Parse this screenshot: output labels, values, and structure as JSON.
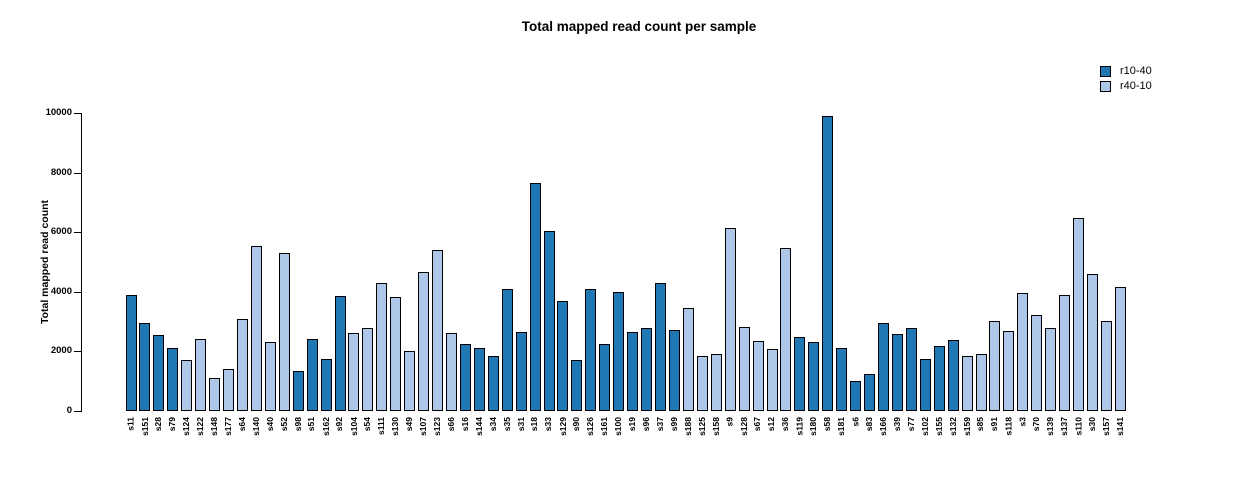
{
  "title": "Total mapped read count per sample",
  "legend": {
    "position": "top-right",
    "items": [
      {
        "label": "r10-40",
        "color": "#1f77b4"
      },
      {
        "label": "r40-10",
        "color": "#aec7e8"
      }
    ]
  },
  "chart_data": {
    "type": "bar",
    "title": "Total mapped read count per sample",
    "xlabel": "",
    "ylabel": "Total mapped read count",
    "ylim": [
      0,
      10000
    ],
    "yticks": [
      0,
      2000,
      4000,
      6000,
      8000,
      10000
    ],
    "grid": false,
    "legend_position": "top-right",
    "series_colors": {
      "r10-40": "#1f77b4",
      "r40-10": "#aec7e8"
    },
    "bar_edge_color": "#000000",
    "bars": [
      {
        "sample": "s11",
        "group": "r10-40",
        "value": 3900
      },
      {
        "sample": "s151",
        "group": "r10-40",
        "value": 2950
      },
      {
        "sample": "s28",
        "group": "r10-40",
        "value": 2550
      },
      {
        "sample": "s79",
        "group": "r10-40",
        "value": 2100
      },
      {
        "sample": "s124",
        "group": "r40-10",
        "value": 1700
      },
      {
        "sample": "s122",
        "group": "r40-10",
        "value": 2400
      },
      {
        "sample": "s148",
        "group": "r40-10",
        "value": 1100
      },
      {
        "sample": "s177",
        "group": "r40-10",
        "value": 1400
      },
      {
        "sample": "s64",
        "group": "r40-10",
        "value": 3100
      },
      {
        "sample": "s140",
        "group": "r40-10",
        "value": 5550
      },
      {
        "sample": "s40",
        "group": "r40-10",
        "value": 2330
      },
      {
        "sample": "s52",
        "group": "r40-10",
        "value": 5300
      },
      {
        "sample": "s98",
        "group": "r10-40",
        "value": 1350
      },
      {
        "sample": "s51",
        "group": "r10-40",
        "value": 2400
      },
      {
        "sample": "s162",
        "group": "r10-40",
        "value": 1750
      },
      {
        "sample": "s92",
        "group": "r10-40",
        "value": 3850
      },
      {
        "sample": "s104",
        "group": "r40-10",
        "value": 2620
      },
      {
        "sample": "s54",
        "group": "r40-10",
        "value": 2780
      },
      {
        "sample": "s111",
        "group": "r40-10",
        "value": 4280
      },
      {
        "sample": "s130",
        "group": "r40-10",
        "value": 3820
      },
      {
        "sample": "s49",
        "group": "r40-10",
        "value": 2000
      },
      {
        "sample": "s107",
        "group": "r40-10",
        "value": 4650
      },
      {
        "sample": "s123",
        "group": "r40-10",
        "value": 5400
      },
      {
        "sample": "s66",
        "group": "r40-10",
        "value": 2620
      },
      {
        "sample": "s16",
        "group": "r10-40",
        "value": 2250
      },
      {
        "sample": "s144",
        "group": "r10-40",
        "value": 2100
      },
      {
        "sample": "s34",
        "group": "r10-40",
        "value": 1850
      },
      {
        "sample": "s35",
        "group": "r10-40",
        "value": 4100
      },
      {
        "sample": "s31",
        "group": "r10-40",
        "value": 2650
      },
      {
        "sample": "s18",
        "group": "r10-40",
        "value": 7650
      },
      {
        "sample": "s33",
        "group": "r10-40",
        "value": 6030
      },
      {
        "sample": "s129",
        "group": "r10-40",
        "value": 3700
      },
      {
        "sample": "s90",
        "group": "r10-40",
        "value": 1700
      },
      {
        "sample": "s126",
        "group": "r10-40",
        "value": 4100
      },
      {
        "sample": "s161",
        "group": "r10-40",
        "value": 2250
      },
      {
        "sample": "s100",
        "group": "r10-40",
        "value": 4000
      },
      {
        "sample": "s19",
        "group": "r10-40",
        "value": 2650
      },
      {
        "sample": "s96",
        "group": "r10-40",
        "value": 2800
      },
      {
        "sample": "s37",
        "group": "r10-40",
        "value": 4280
      },
      {
        "sample": "s99",
        "group": "r10-40",
        "value": 2730
      },
      {
        "sample": "s188",
        "group": "r40-10",
        "value": 3450
      },
      {
        "sample": "s125",
        "group": "r40-10",
        "value": 1830
      },
      {
        "sample": "s158",
        "group": "r40-10",
        "value": 1900
      },
      {
        "sample": "s9",
        "group": "r40-10",
        "value": 6150
      },
      {
        "sample": "s128",
        "group": "r40-10",
        "value": 2830
      },
      {
        "sample": "s67",
        "group": "r40-10",
        "value": 2350
      },
      {
        "sample": "s12",
        "group": "r40-10",
        "value": 2080
      },
      {
        "sample": "s36",
        "group": "r40-10",
        "value": 5480
      },
      {
        "sample": "s119",
        "group": "r10-40",
        "value": 2470
      },
      {
        "sample": "s180",
        "group": "r10-40",
        "value": 2330
      },
      {
        "sample": "s58",
        "group": "r10-40",
        "value": 9900
      },
      {
        "sample": "s181",
        "group": "r10-40",
        "value": 2120
      },
      {
        "sample": "s6",
        "group": "r10-40",
        "value": 1000
      },
      {
        "sample": "s83",
        "group": "r10-40",
        "value": 1250
      },
      {
        "sample": "s166",
        "group": "r10-40",
        "value": 2960
      },
      {
        "sample": "s39",
        "group": "r10-40",
        "value": 2600
      },
      {
        "sample": "s77",
        "group": "r10-40",
        "value": 2770
      },
      {
        "sample": "s102",
        "group": "r10-40",
        "value": 1760
      },
      {
        "sample": "s155",
        "group": "r10-40",
        "value": 2170
      },
      {
        "sample": "s132",
        "group": "r10-40",
        "value": 2390
      },
      {
        "sample": "s159",
        "group": "r40-10",
        "value": 1830
      },
      {
        "sample": "s85",
        "group": "r40-10",
        "value": 1920
      },
      {
        "sample": "s91",
        "group": "r40-10",
        "value": 3030
      },
      {
        "sample": "s118",
        "group": "r40-10",
        "value": 2690
      },
      {
        "sample": "s3",
        "group": "r40-10",
        "value": 3950
      },
      {
        "sample": "s70",
        "group": "r40-10",
        "value": 3220
      },
      {
        "sample": "s139",
        "group": "r40-10",
        "value": 2790
      },
      {
        "sample": "s137",
        "group": "r40-10",
        "value": 3900
      },
      {
        "sample": "s110",
        "group": "r40-10",
        "value": 6480
      },
      {
        "sample": "s30",
        "group": "r40-10",
        "value": 4590
      },
      {
        "sample": "s157",
        "group": "r40-10",
        "value": 3030
      },
      {
        "sample": "s141",
        "group": "r40-10",
        "value": 4150
      }
    ]
  }
}
